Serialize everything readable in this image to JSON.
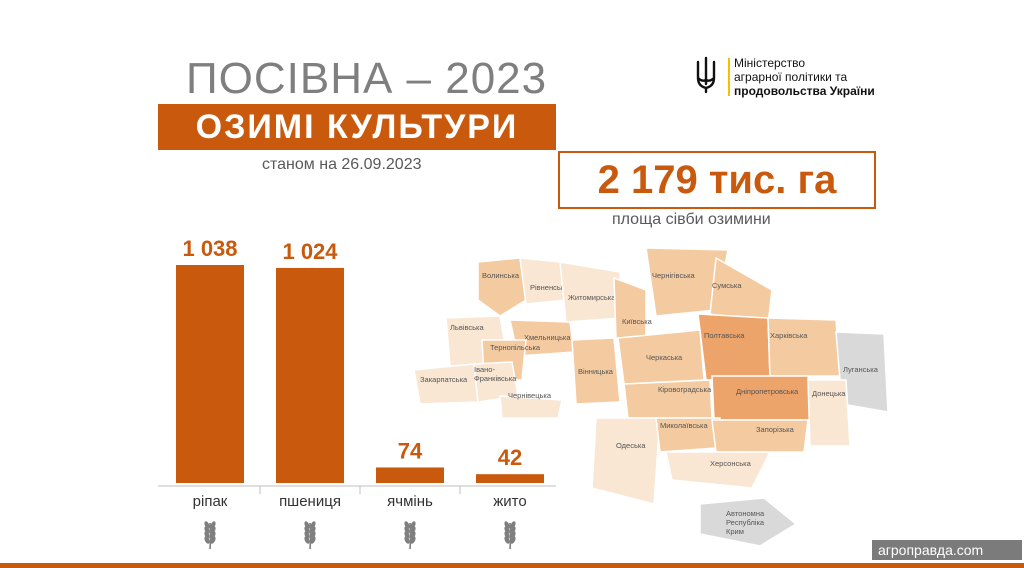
{
  "header": {
    "title": "ПОСІВНА – 2023",
    "banner": "ОЗИМІ КУЛЬТУРИ",
    "as_of": "станом на 26.09.2023"
  },
  "total": {
    "value": "2 179 тис. га",
    "caption": "площа сівби озимини"
  },
  "ministry": {
    "name_lines": [
      "Міністерство",
      "аграрної політики та",
      "продовольства України"
    ],
    "accent_color": "#f2c200"
  },
  "colors": {
    "bar": "#c8590d",
    "map_base": "#f9e6d3",
    "map_mid": "#f4caa0",
    "map_dark": "#eda46a",
    "map_occupied": "#d9d9d9"
  },
  "chart_data": {
    "type": "bar",
    "categories": [
      "ріпак",
      "пшениця",
      "ячмінь",
      "жито"
    ],
    "values": [
      1038,
      1024,
      74,
      42
    ],
    "value_labels": [
      "1 038",
      "1 024",
      "74",
      "42"
    ],
    "icons": [
      "wheat-sprout-icon",
      "wheat-ear-icon",
      "barley-ear-icon",
      "rye-ear-icon"
    ],
    "ylim": [
      0,
      1038
    ],
    "grid": false,
    "title": "",
    "xlabel": "",
    "ylabel": ""
  },
  "map": {
    "regions": [
      {
        "name": "Волинська",
        "shade": "mid"
      },
      {
        "name": "Рівненська",
        "shade": "base"
      },
      {
        "name": "Житомирська",
        "shade": "base"
      },
      {
        "name": "Київська",
        "shade": "mid"
      },
      {
        "name": "Чернігівська",
        "shade": "mid"
      },
      {
        "name": "Сумська",
        "shade": "mid"
      },
      {
        "name": "Львівська",
        "shade": "base"
      },
      {
        "name": "Хмельницька",
        "shade": "mid"
      },
      {
        "name": "Тернопільська",
        "shade": "mid"
      },
      {
        "name": "Полтавська",
        "shade": "dark"
      },
      {
        "name": "Харківська",
        "shade": "mid"
      },
      {
        "name": "Луганська",
        "shade": "occupied"
      },
      {
        "name": "Закарпатська",
        "shade": "base"
      },
      {
        "name": "Івано-Франківська",
        "shade": "base"
      },
      {
        "name": "Вінницька",
        "shade": "mid"
      },
      {
        "name": "Черкаська",
        "shade": "mid"
      },
      {
        "name": "Чернівецька",
        "shade": "base"
      },
      {
        "name": "Кіровоградська",
        "shade": "mid"
      },
      {
        "name": "Дніпропетровська",
        "shade": "dark"
      },
      {
        "name": "Донецька",
        "shade": "base"
      },
      {
        "name": "Одеська",
        "shade": "base"
      },
      {
        "name": "Миколаївська",
        "shade": "mid"
      },
      {
        "name": "Запорізька",
        "shade": "mid"
      },
      {
        "name": "Херсонська",
        "shade": "base"
      },
      {
        "name": "Автономна Республіка Крим",
        "shade": "occupied"
      }
    ]
  },
  "watermark": "агроправда.com"
}
